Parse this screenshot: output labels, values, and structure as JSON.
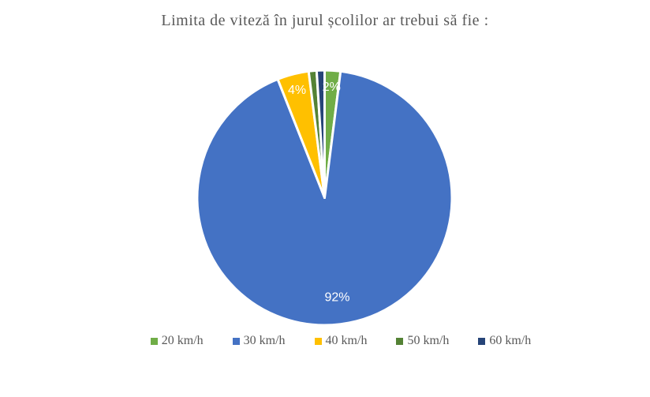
{
  "chart_data": {
    "type": "pie",
    "title": "Limita de viteză în jurul școlilor  ar trebui să fie :",
    "categories": [
      "20 km/h",
      "30 km/h",
      "40 km/h",
      "50 km/h",
      "60 km/h"
    ],
    "values": [
      2,
      92,
      4,
      1,
      1
    ],
    "data_labels": [
      "2%",
      "92%",
      "4%",
      "",
      ""
    ],
    "colors": [
      "#70AD47",
      "#4472C4",
      "#FFC000",
      "#548235",
      "#264478"
    ],
    "label_color": "#ffffff",
    "title_color": "#595959",
    "legend_text_color": "#595959",
    "legend_position": "bottom",
    "start_angle_deg": 0,
    "direction": "clockwise",
    "slice_border_color": "#ffffff"
  }
}
